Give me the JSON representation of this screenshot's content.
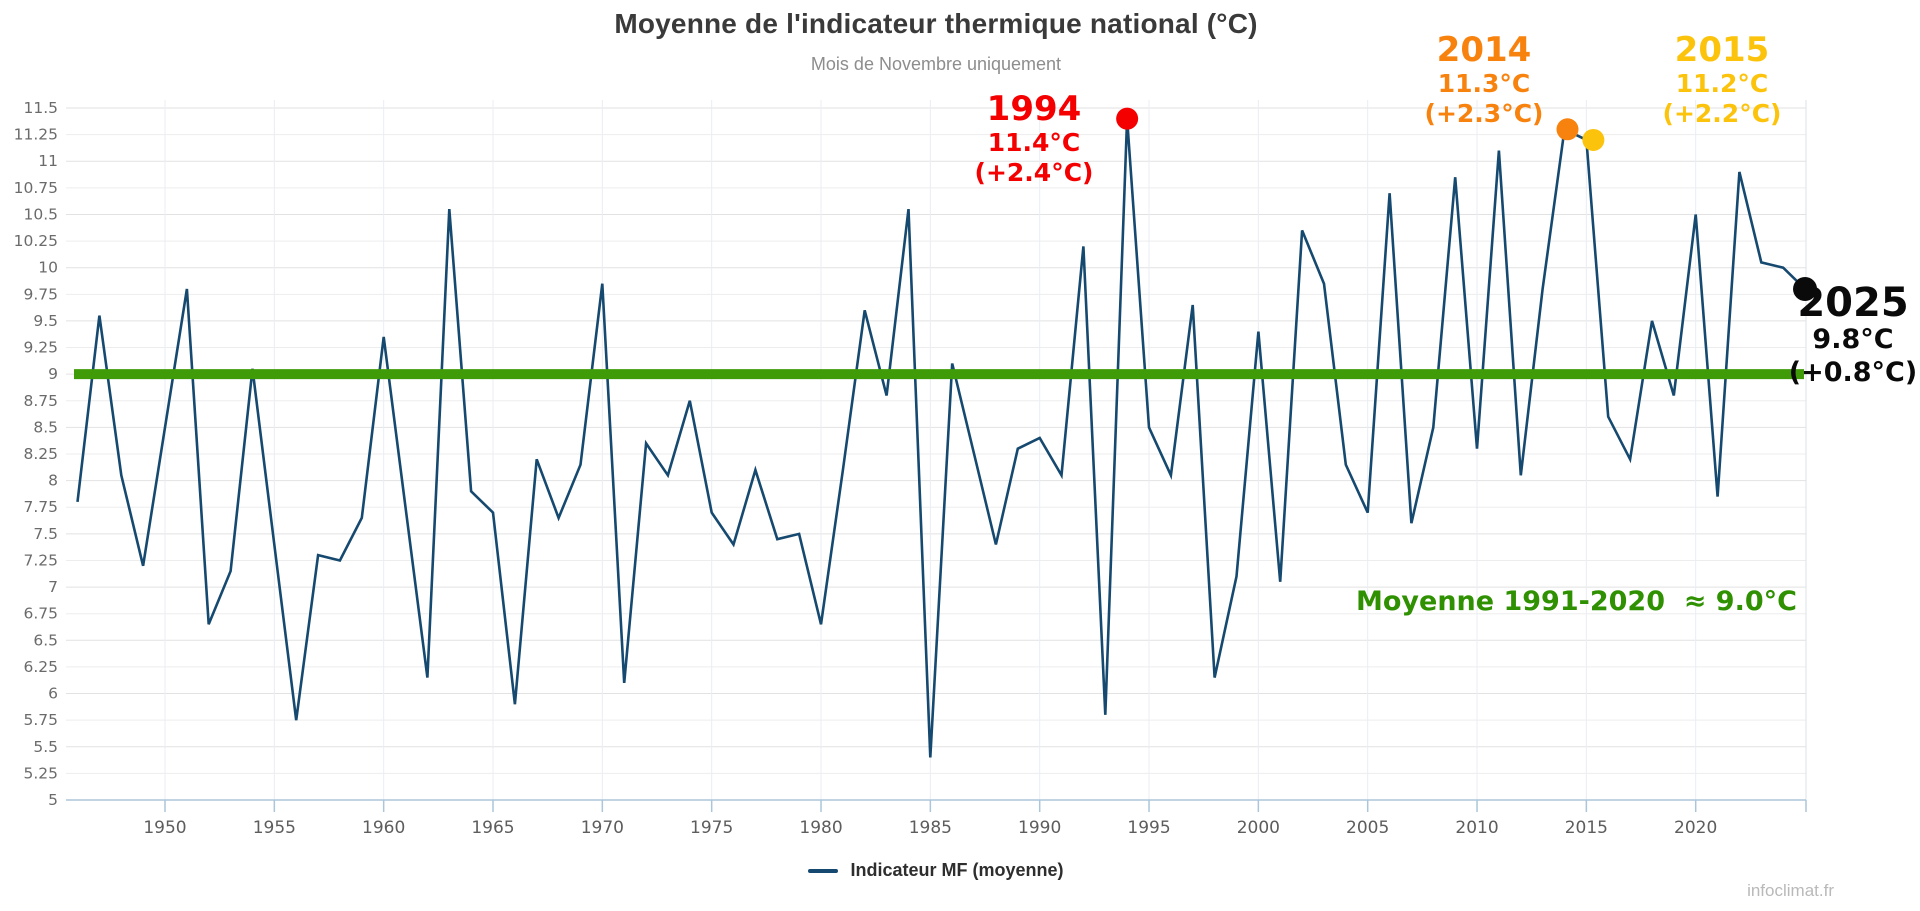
{
  "header": {
    "title": "Moyenne de l'indicateur thermique national (°C)",
    "subtitle": "Mois de Novembre uniquement"
  },
  "legend": {
    "label": "Indicateur MF (moyenne)",
    "line_color": "#16496f"
  },
  "watermark": "infoclimat.fr",
  "axes": {
    "y_ticks": [
      "5",
      "5.25",
      "5.5",
      "5.75",
      "6",
      "6.25",
      "6.5",
      "6.75",
      "7",
      "7.25",
      "7.5",
      "7.75",
      "8",
      "8.25",
      "8.5",
      "8.75",
      "9",
      "9.25",
      "9.5",
      "9.75",
      "10",
      "10.25",
      "10.5",
      "10.75",
      "11",
      "11.25",
      "11.5"
    ],
    "x_ticks": [
      "1950",
      "1955",
      "1960",
      "1965",
      "1970",
      "1975",
      "1980",
      "1985",
      "1990",
      "1995",
      "2000",
      "2005",
      "2010",
      "2015",
      "2020"
    ]
  },
  "chart_data": {
    "type": "line",
    "title": "Moyenne de l'indicateur thermique national (°C)",
    "subtitle": "Mois de Novembre uniquement",
    "xlabel": "",
    "ylabel": "",
    "ylim": [
      5,
      11.5
    ],
    "ytick_step": 0.25,
    "grid": true,
    "legend_position": "bottom",
    "years": [
      1946,
      1947,
      1948,
      1949,
      1950,
      1951,
      1952,
      1953,
      1954,
      1955,
      1956,
      1957,
      1958,
      1959,
      1960,
      1961,
      1962,
      1963,
      1964,
      1965,
      1966,
      1967,
      1968,
      1969,
      1970,
      1971,
      1972,
      1973,
      1974,
      1975,
      1976,
      1977,
      1978,
      1979,
      1980,
      1981,
      1982,
      1983,
      1984,
      1985,
      1986,
      1987,
      1988,
      1989,
      1990,
      1991,
      1992,
      1993,
      1994,
      1995,
      1996,
      1997,
      1998,
      1999,
      2000,
      2001,
      2002,
      2003,
      2004,
      2005,
      2006,
      2007,
      2008,
      2009,
      2010,
      2011,
      2012,
      2013,
      2014,
      2015,
      2016,
      2017,
      2018,
      2019,
      2020,
      2021,
      2022,
      2023,
      2024,
      2025
    ],
    "series": [
      {
        "name": "Indicateur MF (moyenne)",
        "color": "#16496f",
        "values": [
          7.8,
          9.55,
          8.05,
          7.2,
          8.5,
          9.8,
          6.65,
          7.15,
          9.05,
          7.4,
          5.75,
          7.3,
          7.25,
          7.65,
          9.35,
          7.75,
          6.15,
          10.55,
          7.9,
          7.7,
          5.9,
          8.2,
          7.65,
          8.15,
          9.85,
          6.1,
          8.35,
          8.05,
          8.75,
          7.7,
          7.4,
          8.1,
          7.45,
          7.5,
          6.65,
          8.1,
          9.6,
          8.8,
          10.55,
          5.4,
          9.1,
          8.25,
          7.4,
          8.3,
          8.4,
          8.05,
          10.2,
          5.8,
          11.4,
          8.5,
          8.05,
          9.65,
          6.15,
          7.1,
          9.4,
          7.05,
          10.35,
          9.85,
          8.15,
          7.7,
          10.7,
          7.6,
          8.5,
          10.85,
          8.3,
          11.1,
          8.05,
          9.8,
          11.3,
          11.2,
          8.6,
          8.2,
          9.5,
          8.8,
          10.5,
          7.85,
          10.9,
          10.05,
          10.0,
          9.8
        ]
      }
    ],
    "reference_line": {
      "value": 9.0,
      "color": "#3f9b07",
      "label": "Moyenne 1991-2020  ≈ 9.0°C",
      "label_color": "#2f9102"
    },
    "annotations": [
      {
        "year": 1994,
        "value": 11.4,
        "color": "#f40000",
        "lines": [
          "1994",
          "11.4°C",
          "(+2.4°C)"
        ]
      },
      {
        "year": 2014,
        "value": 11.3,
        "color": "#f8820e",
        "lines": [
          "2014",
          "11.3°C",
          "(+2.3°C)"
        ],
        "dot_dx": 3
      },
      {
        "year": 2015,
        "value": 11.2,
        "color": "#fcc30d",
        "lines": [
          "2015",
          "11.2°C",
          "(+2.2°C)"
        ],
        "dot_dx": 7
      },
      {
        "year": 2025,
        "value": 9.8,
        "color": "#0a0a0a",
        "lines": [
          "2025",
          "9.8°C",
          "(+0.8°C)"
        ]
      }
    ]
  }
}
